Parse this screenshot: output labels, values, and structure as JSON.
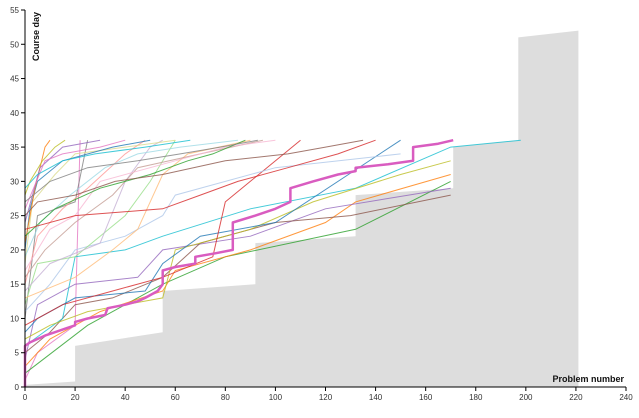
{
  "chart_data": {
    "type": "line",
    "title": "",
    "xlabel": "Problem number",
    "ylabel": "Course day",
    "xlim": [
      0,
      240
    ],
    "ylim": [
      0,
      55
    ],
    "x_ticks": [
      "0",
      "20",
      "40",
      "60",
      "80",
      "100",
      "120",
      "140",
      "160",
      "180",
      "200",
      "220",
      "240"
    ],
    "y_ticks": [
      "0",
      "5",
      "10",
      "15",
      "20",
      "25",
      "30",
      "35",
      "40",
      "45",
      "50",
      "55"
    ],
    "grid": false,
    "legend": "none",
    "background_area": {
      "color": "#dddddd",
      "upper": [
        [
          0,
          0.3
        ],
        [
          20,
          0.8
        ],
        [
          20,
          6
        ],
        [
          55,
          8
        ],
        [
          55,
          14
        ],
        [
          92,
          15
        ],
        [
          92,
          21
        ],
        [
          132,
          22
        ],
        [
          132,
          28
        ],
        [
          171,
          29
        ],
        [
          171,
          35
        ],
        [
          197,
          36
        ],
        [
          197,
          51
        ],
        [
          221,
          52
        ],
        [
          221,
          0
        ]
      ]
    },
    "highlight_series": {
      "color": "#d95cc0",
      "points": [
        [
          0,
          0
        ],
        [
          0,
          6
        ],
        [
          2,
          6.5
        ],
        [
          5,
          7
        ],
        [
          8,
          7.5
        ],
        [
          12,
          8
        ],
        [
          16,
          8.5
        ],
        [
          20,
          9
        ],
        [
          20,
          9.5
        ],
        [
          25,
          10
        ],
        [
          32,
          10.5
        ],
        [
          33,
          11.5
        ],
        [
          40,
          12
        ],
        [
          45,
          12.5
        ],
        [
          48,
          13
        ],
        [
          53,
          14
        ],
        [
          55,
          15
        ],
        [
          55,
          17
        ],
        [
          60,
          17.5
        ],
        [
          68,
          18
        ],
        [
          68,
          19
        ],
        [
          76,
          19.5
        ],
        [
          83,
          20
        ],
        [
          83,
          24
        ],
        [
          92,
          25
        ],
        [
          100,
          26
        ],
        [
          106,
          27
        ],
        [
          106,
          29
        ],
        [
          115,
          30
        ],
        [
          125,
          31
        ],
        [
          132,
          31.5
        ],
        [
          132,
          32
        ],
        [
          145,
          32.5
        ],
        [
          155,
          33
        ],
        [
          155,
          35
        ],
        [
          165,
          35.5
        ],
        [
          171,
          36
        ]
      ]
    },
    "series": [
      {
        "color": "#e377c2",
        "values": [
          [
            0,
            1
          ],
          [
            5,
            5
          ],
          [
            20,
            9
          ],
          [
            22,
            36
          ]
        ]
      },
      {
        "color": "#2ca02c",
        "values": [
          [
            0,
            2
          ],
          [
            25,
            9
          ],
          [
            40,
            12
          ],
          [
            55,
            15
          ],
          [
            80,
            19
          ],
          [
            132,
            23
          ],
          [
            170,
            30
          ]
        ]
      },
      {
        "color": "#ff7f0e",
        "values": [
          [
            0,
            3
          ],
          [
            10,
            7
          ],
          [
            30,
            11
          ],
          [
            55,
            14
          ],
          [
            60,
            17
          ],
          [
            90,
            20
          ],
          [
            120,
            24
          ],
          [
            132,
            27
          ],
          [
            170,
            31
          ]
        ]
      },
      {
        "color": "#9467bd",
        "values": [
          [
            0,
            4
          ],
          [
            5,
            12
          ],
          [
            20,
            15
          ],
          [
            45,
            16
          ],
          [
            55,
            20
          ],
          [
            90,
            22
          ],
          [
            120,
            26
          ],
          [
            170,
            29
          ]
        ]
      },
      {
        "color": "#8c564b",
        "values": [
          [
            0,
            5
          ],
          [
            10,
            8
          ],
          [
            20,
            12
          ],
          [
            35,
            13
          ],
          [
            55,
            16
          ],
          [
            70,
            21
          ],
          [
            100,
            24
          ],
          [
            130,
            25
          ],
          [
            170,
            28
          ]
        ]
      },
      {
        "color": "#17becf",
        "values": [
          [
            0,
            6
          ],
          [
            15,
            10
          ],
          [
            20,
            19
          ],
          [
            40,
            20
          ],
          [
            55,
            22
          ],
          [
            90,
            26
          ],
          [
            132,
            29
          ],
          [
            170,
            35
          ],
          [
            198,
            36
          ]
        ]
      },
      {
        "color": "#bcbd22",
        "values": [
          [
            0,
            7
          ],
          [
            10,
            9
          ],
          [
            25,
            11
          ],
          [
            55,
            13
          ],
          [
            60,
            20
          ],
          [
            90,
            23
          ],
          [
            115,
            27
          ],
          [
            150,
            31
          ],
          [
            170,
            33
          ]
        ]
      },
      {
        "color": "#1f77b4",
        "values": [
          [
            0,
            8
          ],
          [
            5,
            10
          ],
          [
            20,
            13
          ],
          [
            48,
            14
          ],
          [
            55,
            18
          ],
          [
            70,
            22
          ],
          [
            100,
            24
          ],
          [
            150,
            36
          ]
        ]
      },
      {
        "color": "#d62728",
        "values": [
          [
            0,
            9
          ],
          [
            15,
            12
          ],
          [
            35,
            14
          ],
          [
            55,
            16
          ],
          [
            75,
            19
          ],
          [
            80,
            27
          ],
          [
            110,
            36
          ]
        ]
      },
      {
        "color": "#7f7f7f",
        "values": [
          [
            0,
            10
          ],
          [
            5,
            25
          ],
          [
            20,
            27
          ],
          [
            25,
            36
          ]
        ]
      },
      {
        "color": "#aec7e8",
        "values": [
          [
            0,
            11
          ],
          [
            10,
            15
          ],
          [
            20,
            20
          ],
          [
            40,
            22
          ],
          [
            55,
            25
          ],
          [
            60,
            28
          ],
          [
            100,
            32
          ],
          [
            150,
            34
          ]
        ]
      },
      {
        "color": "#98df8a",
        "values": [
          [
            0,
            12
          ],
          [
            5,
            18
          ],
          [
            20,
            19
          ],
          [
            40,
            25
          ],
          [
            50,
            30
          ],
          [
            60,
            36
          ]
        ]
      },
      {
        "color": "#ffbb78",
        "values": [
          [
            0,
            13
          ],
          [
            20,
            16
          ],
          [
            35,
            20
          ],
          [
            45,
            23
          ],
          [
            55,
            31
          ],
          [
            65,
            34
          ],
          [
            90,
            36
          ]
        ]
      },
      {
        "color": "#c5b0d5",
        "values": [
          [
            0,
            14
          ],
          [
            10,
            18
          ],
          [
            30,
            21
          ],
          [
            40,
            30
          ],
          [
            50,
            35
          ],
          [
            55,
            36
          ]
        ]
      },
      {
        "color": "#ff9896",
        "values": [
          [
            0,
            15
          ],
          [
            5,
            22
          ],
          [
            15,
            26
          ],
          [
            25,
            29
          ],
          [
            40,
            34
          ],
          [
            48,
            36
          ]
        ]
      },
      {
        "color": "#c49c94",
        "values": [
          [
            0,
            16
          ],
          [
            8,
            20
          ],
          [
            20,
            24
          ],
          [
            35,
            28
          ],
          [
            45,
            32
          ],
          [
            70,
            34
          ],
          [
            95,
            36
          ]
        ]
      },
      {
        "color": "#f7b6d2",
        "values": [
          [
            0,
            17
          ],
          [
            10,
            23
          ],
          [
            20,
            25
          ],
          [
            30,
            30
          ],
          [
            60,
            33
          ],
          [
            80,
            35
          ],
          [
            100,
            36
          ]
        ]
      },
      {
        "color": "#dbdb8d",
        "values": [
          [
            0,
            18
          ],
          [
            3,
            27
          ],
          [
            12,
            31
          ],
          [
            20,
            34
          ],
          [
            40,
            35
          ],
          [
            60,
            36
          ]
        ]
      },
      {
        "color": "#9edae5",
        "values": [
          [
            0,
            19
          ],
          [
            6,
            24
          ],
          [
            18,
            28
          ],
          [
            32,
            32
          ],
          [
            45,
            34
          ],
          [
            62,
            35
          ],
          [
            85,
            36
          ]
        ]
      },
      {
        "color": "#1f77b4",
        "values": [
          [
            0,
            20
          ],
          [
            2,
            26
          ],
          [
            5,
            30
          ],
          [
            15,
            33
          ],
          [
            35,
            35
          ],
          [
            50,
            36
          ]
        ]
      },
      {
        "color": "#ff7f0e",
        "values": [
          [
            0,
            21
          ],
          [
            4,
            29
          ],
          [
            8,
            35
          ],
          [
            10,
            36
          ]
        ]
      },
      {
        "color": "#2ca02c",
        "values": [
          [
            0,
            22
          ],
          [
            12,
            26
          ],
          [
            30,
            29
          ],
          [
            50,
            31
          ],
          [
            65,
            33
          ],
          [
            75,
            34
          ],
          [
            88,
            36
          ]
        ]
      },
      {
        "color": "#d62728",
        "values": [
          [
            0,
            23
          ],
          [
            20,
            25
          ],
          [
            55,
            26
          ],
          [
            70,
            28
          ],
          [
            85,
            30
          ],
          [
            105,
            32
          ],
          [
            125,
            34
          ],
          [
            140,
            36
          ]
        ]
      },
      {
        "color": "#9467bd",
        "values": [
          [
            0,
            24
          ],
          [
            3,
            28
          ],
          [
            6,
            32
          ],
          [
            15,
            35
          ],
          [
            30,
            36
          ]
        ]
      },
      {
        "color": "#8c564b",
        "values": [
          [
            0,
            25
          ],
          [
            5,
            27
          ],
          [
            20,
            28
          ],
          [
            36,
            30
          ],
          [
            55,
            31
          ],
          [
            80,
            33
          ],
          [
            105,
            34
          ],
          [
            120,
            35
          ],
          [
            135,
            36
          ]
        ]
      },
      {
        "color": "#e377c2",
        "values": [
          [
            0,
            26
          ],
          [
            8,
            33
          ],
          [
            15,
            34
          ],
          [
            30,
            35
          ],
          [
            40,
            36
          ]
        ]
      },
      {
        "color": "#7f7f7f",
        "values": [
          [
            0,
            27
          ],
          [
            10,
            30
          ],
          [
            25,
            32
          ],
          [
            45,
            33
          ],
          [
            62,
            34
          ],
          [
            78,
            35
          ],
          [
            93,
            36
          ]
        ]
      },
      {
        "color": "#bcbd22",
        "values": [
          [
            0,
            28
          ],
          [
            2,
            30
          ],
          [
            7,
            33
          ],
          [
            12,
            35
          ],
          [
            16,
            36
          ]
        ]
      },
      {
        "color": "#17becf",
        "values": [
          [
            0,
            29
          ],
          [
            5,
            31
          ],
          [
            15,
            33
          ],
          [
            28,
            34
          ],
          [
            48,
            35
          ],
          [
            66,
            36
          ]
        ]
      }
    ]
  }
}
